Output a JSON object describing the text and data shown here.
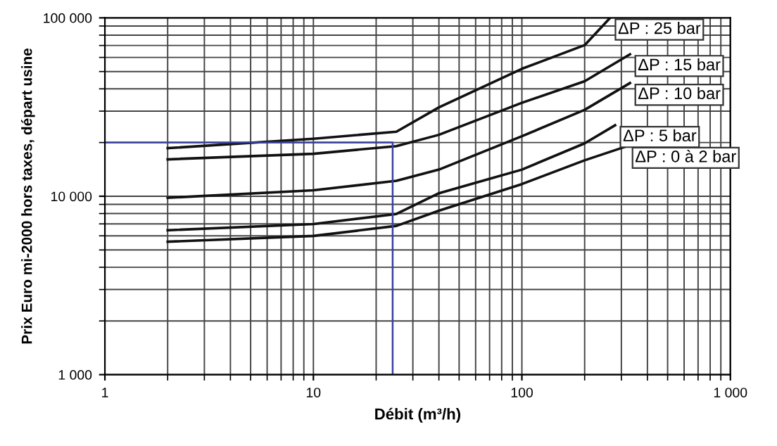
{
  "chart_data": {
    "type": "line",
    "log": "xy",
    "xlabel": "Débit (m³/h)",
    "ylabel": "Prix Euro mi-2000 hors taxes, départ usine",
    "xlim": [
      1,
      1000
    ],
    "ylim": [
      1000,
      100000
    ],
    "xticks": [
      1,
      10,
      100,
      {
        "value": 1000,
        "label": "1 000"
      }
    ],
    "yticks": [
      {
        "value": 1000,
        "label": "1 000"
      },
      {
        "value": 10000,
        "label": "10 000"
      },
      {
        "value": 100000,
        "label": "100 000"
      }
    ],
    "grid": true,
    "legend": false,
    "marker": "none",
    "line_style": "solid",
    "series": [
      {
        "name": "ΔP : 25 bar",
        "color": "#111111",
        "x": [
          2,
          10,
          25,
          40,
          100,
          200,
          265
        ],
        "values": [
          18600,
          21000,
          23000,
          31500,
          51800,
          70300,
          100000
        ]
      },
      {
        "name": "ΔP : 15 bar",
        "color": "#111111",
        "x": [
          2,
          10,
          25,
          40,
          100,
          200,
          330
        ],
        "values": [
          16100,
          17300,
          19100,
          22100,
          33400,
          44100,
          62500
        ]
      },
      {
        "name": "ΔP : 10 bar",
        "color": "#111111",
        "x": [
          2,
          10,
          25,
          40,
          100,
          200,
          330
        ],
        "values": [
          9800,
          10800,
          12200,
          14100,
          21700,
          30500,
          43100
        ]
      },
      {
        "name": "ΔP : 5 bar",
        "color": "#111111",
        "x": [
          2,
          10,
          25,
          40,
          100,
          200,
          280
        ],
        "values": [
          6450,
          6980,
          7950,
          10400,
          14100,
          19800,
          25000
        ]
      },
      {
        "name": "ΔP : 0 à 2 bar",
        "color": "#111111",
        "x": [
          2,
          10,
          25,
          40,
          100,
          200,
          320
        ],
        "values": [
          5560,
          5990,
          6820,
          8300,
          11700,
          15900,
          19100
        ]
      },
      {
        "color": "#3b3fa0",
        "x": [
          1,
          24,
          24
        ],
        "values": [
          20000,
          20000,
          1000
        ]
      }
    ]
  }
}
